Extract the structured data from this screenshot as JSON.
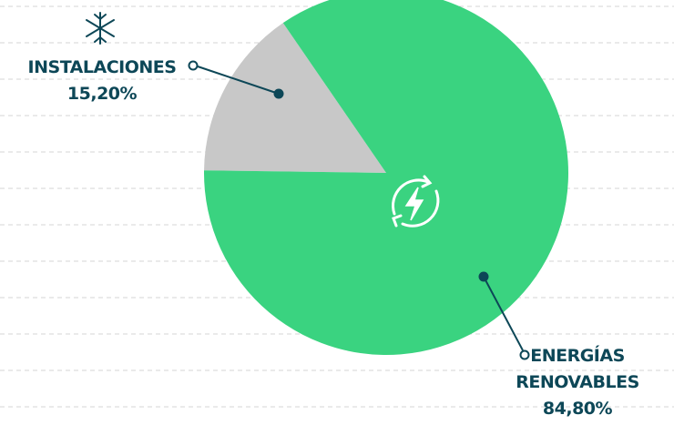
{
  "chart_data": {
    "type": "pie",
    "categories": [
      "INSTALACIONES",
      "ENERGÍAS RENOVABLES"
    ],
    "values": [
      15.2,
      84.8
    ],
    "value_labels": [
      "15,20%",
      "84,80%"
    ],
    "colors": [
      "#c8c8c8",
      "#3ad380"
    ]
  }
}
